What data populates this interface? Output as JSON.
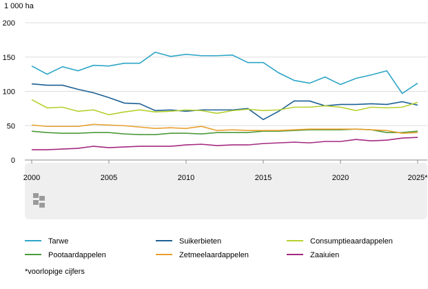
{
  "chart_data": {
    "type": "line",
    "y_label": "1 000 ha",
    "x": [
      2000,
      2001,
      2002,
      2003,
      2004,
      2005,
      2006,
      2007,
      2008,
      2009,
      2010,
      2011,
      2012,
      2013,
      2014,
      2015,
      2016,
      2017,
      2018,
      2019,
      2020,
      2021,
      2022,
      2023,
      2024,
      2025
    ],
    "xlim": [
      2000,
      2025
    ],
    "xticks": [
      2000,
      2005,
      2010,
      2015,
      2020,
      {
        "value": 2025,
        "label": "2025*"
      }
    ],
    "ylim": [
      0,
      200
    ],
    "yticks": [
      0,
      50,
      100,
      150,
      200
    ],
    "grid": true,
    "series": [
      {
        "name": "Tarwe",
        "color": "#2ba5c6",
        "values": [
          137,
          125,
          136,
          130,
          138,
          137,
          141,
          141,
          157,
          151,
          154,
          152,
          152,
          153,
          142,
          142,
          127,
          116,
          112,
          121,
          110,
          119,
          124,
          130,
          97,
          112
        ]
      },
      {
        "name": "Suikerbieten",
        "color": "#1b5f94",
        "values": [
          111,
          109,
          109,
          103,
          98,
          91,
          83,
          82,
          72,
          73,
          71,
          73,
          73,
          73,
          75,
          59,
          71,
          86,
          86,
          79,
          81,
          81,
          82,
          81,
          85,
          80
        ]
      },
      {
        "name": "Consumptieaardappelen",
        "color": "#b5cf2c",
        "values": [
          88,
          76,
          77,
          71,
          73,
          66,
          70,
          73,
          70,
          71,
          73,
          72,
          68,
          72,
          74,
          72,
          73,
          77,
          77,
          79,
          77,
          72,
          77,
          76,
          77,
          84
        ]
      },
      {
        "name": "Pootaardappelen",
        "color": "#4b9a3a",
        "values": [
          42,
          40,
          39,
          39,
          40,
          40,
          38,
          37,
          37,
          39,
          39,
          38,
          40,
          40,
          40,
          42,
          42,
          43,
          44,
          44,
          44,
          45,
          44,
          40,
          40,
          42
        ]
      },
      {
        "name": "Zetmeelaardappelen",
        "color": "#e8a02e",
        "values": [
          51,
          49,
          49,
          49,
          52,
          51,
          50,
          48,
          46,
          47,
          46,
          49,
          43,
          44,
          43,
          43,
          43,
          44,
          45,
          45,
          45,
          45,
          44,
          43,
          39,
          40
        ]
      },
      {
        "name": "Zaaiuien",
        "color": "#a3287f",
        "values": [
          15,
          15,
          16,
          17,
          20,
          18,
          19,
          20,
          20,
          20,
          22,
          23,
          21,
          22,
          22,
          24,
          25,
          26,
          25,
          27,
          27,
          30,
          28,
          29,
          32,
          33
        ]
      }
    ],
    "footnote": "*voorlopige cijfers"
  }
}
